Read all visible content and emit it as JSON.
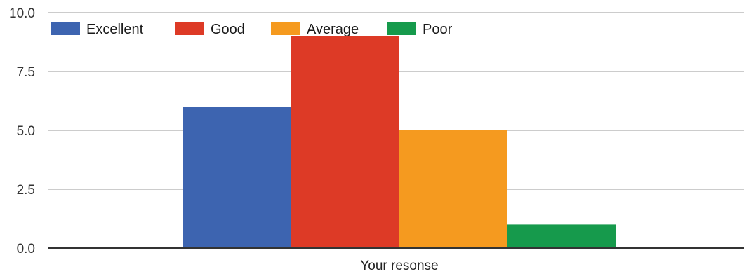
{
  "chart_data": {
    "type": "bar",
    "title": "",
    "xlabel": "Your resonse",
    "ylabel": "",
    "categories": [
      "Your resonse"
    ],
    "series": [
      {
        "name": "Excellent",
        "values": [
          6
        ],
        "color": "#3d64b0"
      },
      {
        "name": "Good",
        "values": [
          9
        ],
        "color": "#dd3a26"
      },
      {
        "name": "Average",
        "values": [
          5
        ],
        "color": "#f59a1f"
      },
      {
        "name": "Poor",
        "values": [
          1
        ],
        "color": "#169a4c"
      }
    ],
    "ylim": [
      0,
      10
    ],
    "yticks": [
      "0.0",
      "2.5",
      "5.0",
      "7.5",
      "10.0"
    ],
    "ytick_values": [
      0,
      2.5,
      5,
      7.5,
      10
    ],
    "grid": true,
    "legend_position": "top-left"
  }
}
